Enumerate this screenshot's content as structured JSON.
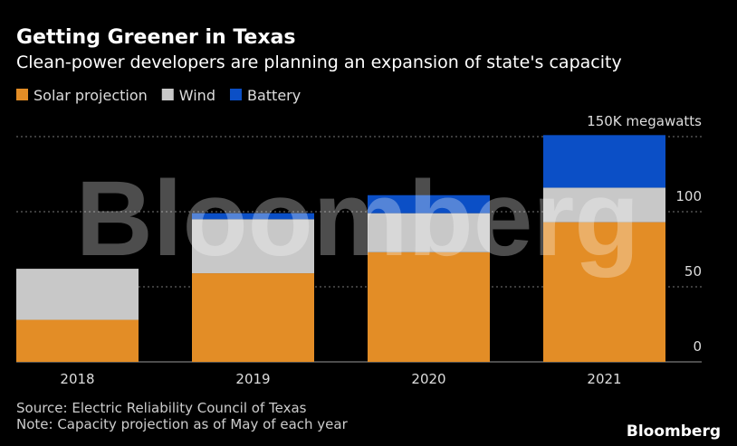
{
  "chart_data": {
    "type": "stacked_bar",
    "title": "Getting Greener in Texas",
    "subtitle": "Clean-power developers are planning an expansion of state's capacity",
    "categories": [
      "2018",
      "2019",
      "2020",
      "2021"
    ],
    "series": [
      {
        "name": "Solar projection",
        "color": "#e38d26",
        "values": [
          28,
          59,
          73,
          93
        ]
      },
      {
        "name": "Wind",
        "color": "#c8c8c8",
        "values": [
          34,
          36,
          26,
          23
        ]
      },
      {
        "name": "Battery",
        "color": "#0b4fc6",
        "values": [
          0,
          4,
          12,
          35
        ]
      }
    ],
    "ylim": [
      0,
      150
    ],
    "yticks": [
      0,
      50,
      100,
      {
        "value": 150,
        "label": "150K megawatts"
      }
    ],
    "grid": true,
    "legend": "top-left",
    "source": "Source: Electric Reliability Council of Texas",
    "note": "Note: Capacity projection as of May of each year",
    "watermark": "Bloomberg",
    "logo": "Bloomberg"
  }
}
